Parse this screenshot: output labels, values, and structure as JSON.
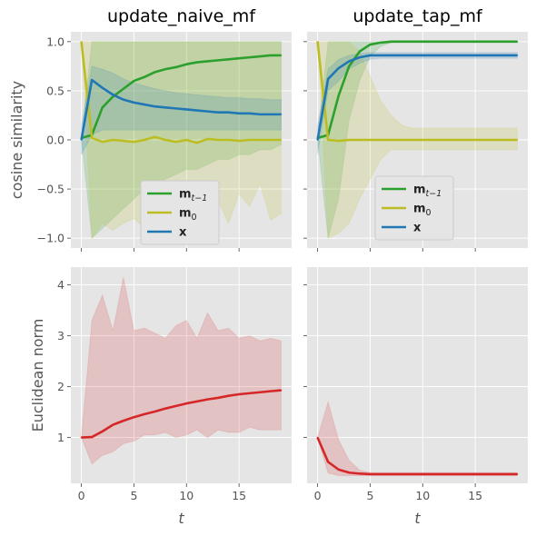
{
  "chart_data": [
    {
      "type": "line",
      "title": "update_naive_mf",
      "xlabel": "",
      "ylabel": "cosine similarity",
      "xlim": [
        -1,
        20
      ],
      "ylim": [
        -1.1,
        1.1
      ],
      "xticks": [
        0,
        5,
        10,
        15
      ],
      "yticks": [
        -1.0,
        -0.5,
        0.0,
        0.5,
        1.0
      ],
      "x": [
        0,
        1,
        2,
        3,
        4,
        5,
        6,
        7,
        8,
        9,
        10,
        11,
        12,
        13,
        14,
        15,
        16,
        17,
        18,
        19
      ],
      "legend": "lower-center",
      "series": [
        {
          "name": "m_{t-1}",
          "color": "#2ca02c",
          "values": [
            0.02,
            0.05,
            0.33,
            0.44,
            0.52,
            0.6,
            0.64,
            0.69,
            0.72,
            0.74,
            0.77,
            0.79,
            0.8,
            0.81,
            0.82,
            0.83,
            0.84,
            0.85,
            0.86,
            0.86
          ],
          "lower": [
            0.02,
            -1.0,
            -0.9,
            -0.8,
            -0.7,
            -0.6,
            -0.5,
            -0.45,
            -0.4,
            -0.35,
            -0.3,
            -0.3,
            -0.25,
            -0.2,
            -0.2,
            -0.15,
            -0.15,
            -0.1,
            -0.1,
            -0.05
          ],
          "upper": [
            0.02,
            1.0,
            1.0,
            1.0,
            1.0,
            1.0,
            1.0,
            1.0,
            1.0,
            1.0,
            1.0,
            1.0,
            1.0,
            1.0,
            1.0,
            1.0,
            1.0,
            1.0,
            1.0,
            1.0
          ]
        },
        {
          "name": "m_0",
          "color": "#bcbd22",
          "values": [
            1.0,
            0.02,
            -0.02,
            0.0,
            -0.01,
            -0.02,
            0.0,
            0.03,
            0.0,
            -0.02,
            0.0,
            -0.03,
            0.01,
            0.0,
            0.0,
            -0.01,
            0.0,
            0.0,
            0.0,
            0.0
          ],
          "lower": [
            1.0,
            -1.0,
            -0.85,
            -0.92,
            -0.85,
            -0.8,
            -0.9,
            -0.78,
            -0.92,
            -0.72,
            -0.82,
            -0.68,
            -0.75,
            -0.62,
            -0.85,
            -0.55,
            -0.68,
            -0.45,
            -0.82,
            -0.75
          ],
          "upper": [
            1.0,
            1.0,
            1.0,
            1.0,
            1.0,
            1.0,
            1.0,
            1.0,
            1.0,
            1.0,
            1.0,
            1.0,
            1.0,
            1.0,
            1.0,
            1.0,
            1.0,
            1.0,
            1.0,
            1.0
          ]
        },
        {
          "name": "x",
          "color": "#1f77b4",
          "values": [
            0.0,
            0.61,
            0.53,
            0.46,
            0.41,
            0.38,
            0.36,
            0.34,
            0.33,
            0.32,
            0.31,
            0.3,
            0.29,
            0.28,
            0.28,
            0.27,
            0.27,
            0.26,
            0.26,
            0.26
          ],
          "lower": [
            -0.15,
            0.05,
            0.1,
            0.1,
            0.1,
            0.1,
            0.1,
            0.1,
            0.1,
            0.1,
            0.1,
            0.1,
            0.1,
            0.1,
            0.1,
            0.1,
            0.1,
            0.1,
            0.1,
            0.1
          ],
          "upper": [
            0.15,
            0.75,
            0.72,
            0.68,
            0.62,
            0.58,
            0.55,
            0.52,
            0.5,
            0.48,
            0.47,
            0.46,
            0.45,
            0.44,
            0.43,
            0.43,
            0.42,
            0.42,
            0.41,
            0.41
          ]
        }
      ]
    },
    {
      "type": "line",
      "title": "update_tap_mf",
      "xlabel": "",
      "ylabel": "",
      "xlim": [
        -1,
        20
      ],
      "ylim": [
        -1.1,
        1.1
      ],
      "xticks": [
        0,
        5,
        10,
        15
      ],
      "yticks": [
        -1.0,
        -0.5,
        0.0,
        0.5,
        1.0
      ],
      "x": [
        0,
        1,
        2,
        3,
        4,
        5,
        6,
        7,
        8,
        9,
        10,
        11,
        12,
        13,
        14,
        15,
        16,
        17,
        18,
        19
      ],
      "legend": "lower-center",
      "series": [
        {
          "name": "m_{t-1}",
          "color": "#2ca02c",
          "values": [
            0.02,
            0.05,
            0.45,
            0.75,
            0.9,
            0.97,
            0.99,
            1.0,
            1.0,
            1.0,
            1.0,
            1.0,
            1.0,
            1.0,
            1.0,
            1.0,
            1.0,
            1.0,
            1.0,
            1.0
          ],
          "lower": [
            0.02,
            -1.0,
            -0.6,
            0.2,
            0.6,
            0.85,
            0.95,
            0.99,
            1.0,
            1.0,
            1.0,
            1.0,
            1.0,
            1.0,
            1.0,
            1.0,
            1.0,
            1.0,
            1.0,
            1.0
          ],
          "upper": [
            0.02,
            1.0,
            1.0,
            1.0,
            1.0,
            1.0,
            1.0,
            1.0,
            1.0,
            1.0,
            1.0,
            1.0,
            1.0,
            1.0,
            1.0,
            1.0,
            1.0,
            1.0,
            1.0,
            1.0
          ]
        },
        {
          "name": "m_0",
          "color": "#bcbd22",
          "values": [
            1.0,
            0.0,
            -0.01,
            0.0,
            0.0,
            0.0,
            0.0,
            0.0,
            0.0,
            0.0,
            0.0,
            0.0,
            0.0,
            0.0,
            0.0,
            0.0,
            0.0,
            0.0,
            0.0,
            0.0
          ],
          "lower": [
            1.0,
            -1.0,
            -0.95,
            -0.85,
            -0.6,
            -0.4,
            -0.2,
            -0.1,
            -0.1,
            -0.1,
            -0.1,
            -0.1,
            -0.1,
            -0.1,
            -0.1,
            -0.1,
            -0.1,
            -0.1,
            -0.1,
            -0.1
          ],
          "upper": [
            1.0,
            1.0,
            1.0,
            1.0,
            0.9,
            0.65,
            0.4,
            0.25,
            0.15,
            0.12,
            0.12,
            0.12,
            0.12,
            0.12,
            0.12,
            0.12,
            0.12,
            0.12,
            0.12,
            0.12
          ]
        },
        {
          "name": "x",
          "color": "#1f77b4",
          "values": [
            0.0,
            0.62,
            0.73,
            0.8,
            0.84,
            0.86,
            0.86,
            0.86,
            0.86,
            0.86,
            0.86,
            0.86,
            0.86,
            0.86,
            0.86,
            0.86,
            0.86,
            0.86,
            0.86,
            0.86
          ],
          "lower": [
            -0.15,
            0.5,
            0.6,
            0.72,
            0.78,
            0.82,
            0.83,
            0.83,
            0.83,
            0.83,
            0.83,
            0.83,
            0.83,
            0.83,
            0.83,
            0.83,
            0.83,
            0.83,
            0.83,
            0.83
          ],
          "upper": [
            0.15,
            0.72,
            0.82,
            0.86,
            0.88,
            0.89,
            0.89,
            0.89,
            0.89,
            0.89,
            0.89,
            0.89,
            0.89,
            0.89,
            0.89,
            0.89,
            0.89,
            0.89,
            0.89,
            0.89
          ]
        }
      ]
    },
    {
      "type": "line",
      "title": "",
      "xlabel": "t",
      "ylabel": "Euclidean norm",
      "xlim": [
        -1,
        20
      ],
      "ylim": [
        0.1,
        4.35
      ],
      "xticks": [
        0,
        5,
        10,
        15
      ],
      "yticks": [
        1,
        2,
        3,
        4
      ],
      "x": [
        0,
        1,
        2,
        3,
        4,
        5,
        6,
        7,
        8,
        9,
        10,
        11,
        12,
        13,
        14,
        15,
        16,
        17,
        18,
        19
      ],
      "series": [
        {
          "name": "",
          "color": "#d62728",
          "values": [
            1.0,
            1.01,
            1.12,
            1.25,
            1.33,
            1.4,
            1.46,
            1.51,
            1.57,
            1.62,
            1.67,
            1.71,
            1.75,
            1.78,
            1.82,
            1.85,
            1.87,
            1.89,
            1.91,
            1.93
          ],
          "lower": [
            1.0,
            0.48,
            0.65,
            0.72,
            0.88,
            0.93,
            1.05,
            1.05,
            1.1,
            1.0,
            1.05,
            1.15,
            1.0,
            1.15,
            1.1,
            1.1,
            1.2,
            1.15,
            1.15,
            1.15
          ],
          "upper": [
            1.0,
            3.3,
            3.8,
            3.1,
            4.15,
            3.1,
            3.15,
            3.05,
            2.95,
            3.2,
            3.3,
            2.95,
            3.45,
            3.1,
            3.15,
            2.95,
            3.0,
            2.9,
            2.95,
            2.9
          ]
        }
      ]
    },
    {
      "type": "line",
      "title": "",
      "xlabel": "t",
      "ylabel": "",
      "xlim": [
        -1,
        20
      ],
      "ylim": [
        0.1,
        4.35
      ],
      "xticks": [
        0,
        5,
        10,
        15
      ],
      "yticks": [
        1,
        2,
        3,
        4
      ],
      "x": [
        0,
        1,
        2,
        3,
        4,
        5,
        6,
        7,
        8,
        9,
        10,
        11,
        12,
        13,
        14,
        15,
        16,
        17,
        18,
        19
      ],
      "series": [
        {
          "name": "",
          "color": "#d62728",
          "values": [
            1.0,
            0.52,
            0.37,
            0.31,
            0.29,
            0.28,
            0.28,
            0.28,
            0.28,
            0.28,
            0.28,
            0.28,
            0.28,
            0.28,
            0.28,
            0.28,
            0.28,
            0.28,
            0.28,
            0.28
          ],
          "lower": [
            1.0,
            0.3,
            0.25,
            0.25,
            0.25,
            0.25,
            0.25,
            0.25,
            0.25,
            0.25,
            0.25,
            0.25,
            0.25,
            0.25,
            0.25,
            0.25,
            0.25,
            0.25,
            0.25,
            0.25
          ],
          "upper": [
            1.0,
            1.7,
            0.95,
            0.55,
            0.36,
            0.31,
            0.31,
            0.31,
            0.31,
            0.31,
            0.31,
            0.31,
            0.31,
            0.31,
            0.31,
            0.31,
            0.31,
            0.31,
            0.31,
            0.31
          ]
        }
      ]
    }
  ]
}
